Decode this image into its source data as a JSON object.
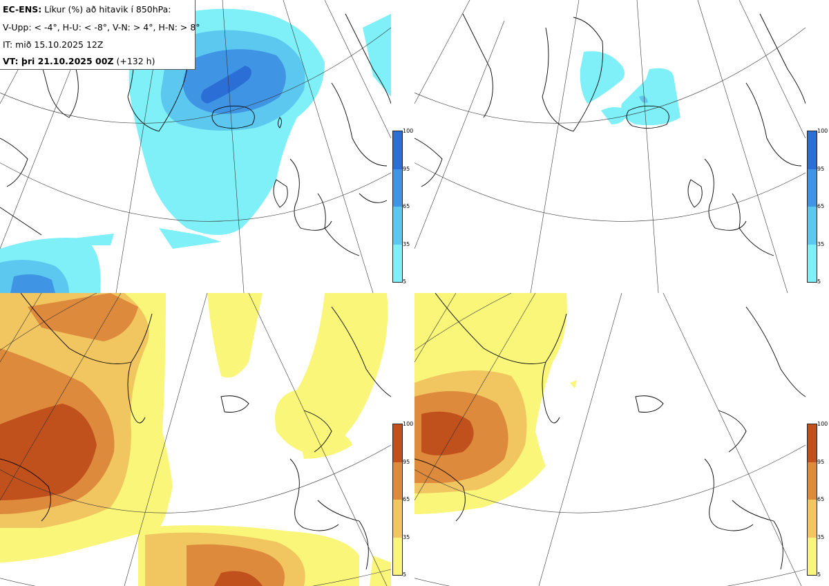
{
  "header": {
    "line1_bold": "EC-ENS:",
    "line1_rest": "Líkur (%) að hitavik í 850hPa:",
    "line2": "V-Upp: < -4°, H-U: < -8°, V-N: > 4°, H-N: > 8°",
    "line3": "IT: mið 15.10.2025 12Z",
    "line4_bold": "VT: þri 21.10.2025 00Z",
    "line4_rest": "(+132 h)"
  },
  "colorbar_cold": {
    "ticks": [
      "100",
      "95",
      "65",
      "35",
      "5"
    ],
    "colors": [
      "#2b6fd6",
      "#3f94e4",
      "#5cc8f0",
      "#7ff0f8"
    ]
  },
  "colorbar_warm": {
    "ticks": [
      "100",
      "95",
      "65",
      "35",
      "5"
    ],
    "colors": [
      "#c0501c",
      "#de8a3c",
      "#f1c560",
      "#faf67a"
    ]
  },
  "panels": [
    {
      "id": "top-left",
      "variable": "V-Upp",
      "threshold": "< -4°"
    },
    {
      "id": "top-right",
      "variable": "H-U",
      "threshold": "< -8°"
    },
    {
      "id": "bottom-left",
      "variable": "V-N",
      "threshold": "> 4°"
    },
    {
      "id": "bottom-right",
      "variable": "H-N",
      "threshold": "> 8°"
    }
  ]
}
